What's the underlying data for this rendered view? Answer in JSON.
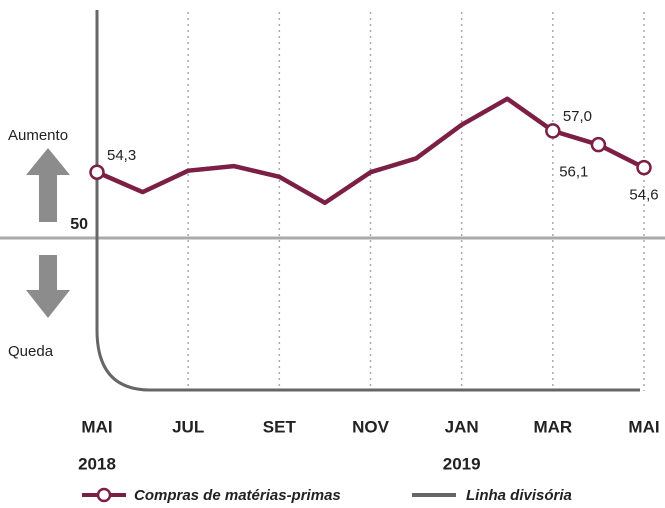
{
  "chart_data": {
    "type": "line",
    "categories": [
      "MAI",
      null,
      "JUL",
      null,
      "SET",
      null,
      "NOV",
      null,
      "JAN",
      null,
      "MAR",
      null,
      "MAI"
    ],
    "category_years": [
      "2018",
      null,
      null,
      null,
      null,
      null,
      null,
      null,
      "2019",
      null,
      null,
      null,
      null
    ],
    "series": [
      {
        "name": "Compras de matérias-primas",
        "color": "#7b1f45",
        "values": [
          54.3,
          53.0,
          54.4,
          54.7,
          54.0,
          52.3,
          54.3,
          55.2,
          57.4,
          59.1,
          57.0,
          56.1,
          54.6
        ],
        "value_labels": [
          "54,3",
          null,
          null,
          null,
          null,
          null,
          null,
          null,
          null,
          null,
          "57,0",
          "56,1",
          "54,6"
        ]
      }
    ],
    "divider_name": "Linha divisória",
    "divider_color": "#666666",
    "ylim": [
      40,
      65
    ],
    "yticks": [
      50
    ],
    "annotations": [
      "Aumento",
      "Queda"
    ]
  }
}
